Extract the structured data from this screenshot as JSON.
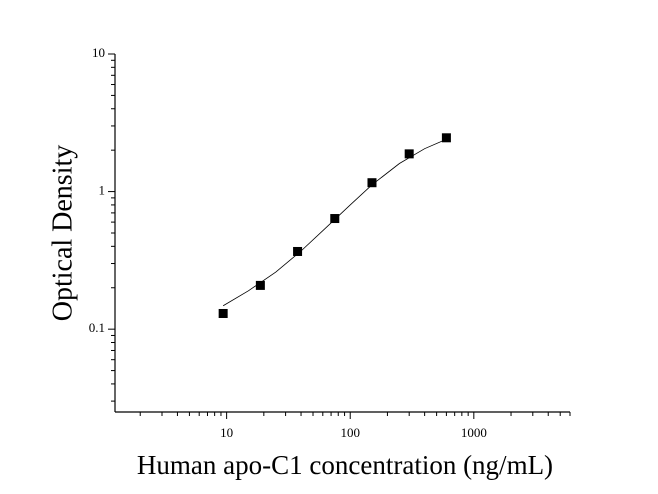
{
  "chart_data": {
    "type": "scatter",
    "xlabel": "Human apo-C1 concentration (ng/mL)",
    "ylabel": "Optical Density",
    "xscale": "log",
    "yscale": "log",
    "xlim": [
      1.25,
      6000
    ],
    "ylim": [
      0.025,
      10
    ],
    "xticks": [
      10,
      100,
      1000
    ],
    "yticks": [
      0.1,
      1,
      10
    ],
    "xminor_ticks": [
      2,
      3,
      4,
      5,
      6,
      7,
      8,
      9,
      20,
      30,
      40,
      50,
      60,
      70,
      80,
      90,
      200,
      300,
      400,
      500,
      600,
      700,
      800,
      900,
      2000,
      3000,
      4000,
      5000,
      6000
    ],
    "yminor_ticks": [
      0.03,
      0.04,
      0.05,
      0.06,
      0.07,
      0.08,
      0.09,
      0.2,
      0.3,
      0.4,
      0.5,
      0.6,
      0.7,
      0.8,
      0.9,
      2,
      3,
      4,
      5,
      6,
      7,
      8,
      9
    ],
    "series": [
      {
        "color": "#000000",
        "marker": "square",
        "x": [
          9.375,
          18.75,
          37.5,
          75,
          150,
          300,
          600
        ],
        "values": [
          0.13,
          0.208,
          0.367,
          0.637,
          1.16,
          1.88,
          2.46
        ]
      },
      {
        "color": "#000000",
        "marker": "line",
        "x": [
          9.375,
          15,
          25,
          40,
          60,
          100,
          150,
          250,
          400,
          600
        ],
        "values": [
          0.148,
          0.19,
          0.26,
          0.37,
          0.52,
          0.8,
          1.12,
          1.6,
          2.05,
          2.4
        ]
      }
    ]
  }
}
